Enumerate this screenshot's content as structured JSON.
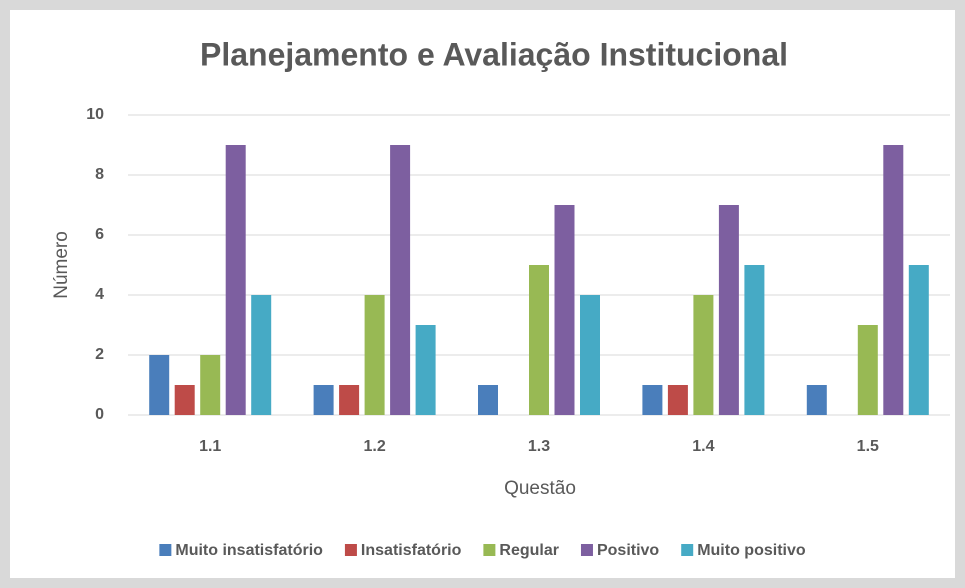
{
  "chart_data": {
    "type": "bar",
    "title": "Planejamento e Avaliação Institucional",
    "x_label": "Questão",
    "y_label": "Número",
    "categories": [
      "1.1",
      "1.2",
      "1.3",
      "1.4",
      "1.5"
    ],
    "series": [
      {
        "name": "Muito insatisfatório",
        "color": "#4a7ebb",
        "values": [
          2,
          1,
          1,
          1,
          1
        ]
      },
      {
        "name": "Insatisfatório",
        "color": "#be4b48",
        "values": [
          1,
          1,
          0,
          1,
          0
        ]
      },
      {
        "name": "Regular",
        "color": "#98b954",
        "values": [
          2,
          4,
          5,
          4,
          3
        ]
      },
      {
        "name": "Positivo",
        "color": "#7d5fa0",
        "values": [
          9,
          9,
          7,
          7,
          9
        ]
      },
      {
        "name": "Muito positivo",
        "color": "#46aac5",
        "values": [
          4,
          3,
          4,
          5,
          5
        ]
      }
    ],
    "ylim": [
      0,
      10
    ],
    "yticks": [
      0,
      2,
      4,
      6,
      8,
      10
    ],
    "grid": true,
    "legend": "bottom"
  }
}
